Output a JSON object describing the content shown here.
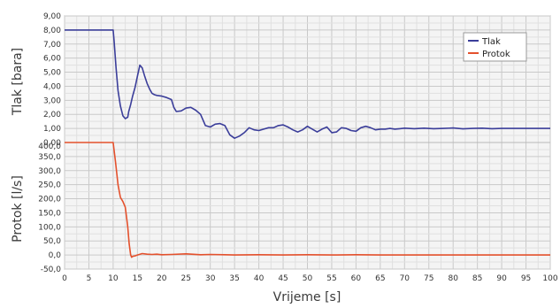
{
  "chart_data": [
    {
      "type": "line",
      "ylabel": "Tlak [bara]",
      "ylim": [
        0,
        9
      ],
      "yticks": [
        "9,00",
        "8,00",
        "7,00",
        "6,00",
        "5,00",
        "4,00",
        "3,00",
        "2,00",
        "1,00",
        "0,00"
      ],
      "legend_placement": "top-right",
      "grid": true,
      "series": [
        {
          "name": "Tlak",
          "color": "#3b3e9a",
          "x": [
            0,
            10,
            10.2,
            10.6,
            11,
            11.5,
            12,
            12.5,
            13,
            13.2,
            13.6,
            14,
            14.5,
            15,
            15.5,
            16,
            16.5,
            17,
            17.5,
            18,
            18.5,
            19,
            20,
            21,
            22,
            22.5,
            23,
            24,
            25,
            26,
            27,
            28,
            29,
            30,
            31,
            32,
            33,
            34,
            35,
            36,
            37,
            38,
            39,
            40,
            41,
            42,
            43,
            44,
            45,
            46,
            47,
            48,
            49,
            50,
            51,
            52,
            53,
            54,
            55,
            56,
            57,
            58,
            59,
            60,
            61,
            62,
            63,
            64,
            65,
            66,
            67,
            68,
            69,
            70,
            72,
            74,
            76,
            78,
            80,
            82,
            84,
            86,
            88,
            90,
            92,
            94,
            96,
            98,
            100
          ],
          "values": [
            8.0,
            8.0,
            7.2,
            5.3,
            3.7,
            2.6,
            1.9,
            1.7,
            1.8,
            2.2,
            2.7,
            3.3,
            3.9,
            4.7,
            5.5,
            5.3,
            4.7,
            4.2,
            3.8,
            3.5,
            3.4,
            3.35,
            3.3,
            3.2,
            3.05,
            2.5,
            2.2,
            2.25,
            2.45,
            2.5,
            2.3,
            2.0,
            1.2,
            1.1,
            1.3,
            1.35,
            1.2,
            0.55,
            0.3,
            0.45,
            0.7,
            1.05,
            0.9,
            0.85,
            0.95,
            1.05,
            1.05,
            1.2,
            1.25,
            1.1,
            0.9,
            0.75,
            0.9,
            1.15,
            0.95,
            0.75,
            0.95,
            1.1,
            0.7,
            0.75,
            1.05,
            1.0,
            0.85,
            0.8,
            1.05,
            1.15,
            1.05,
            0.9,
            0.95,
            0.95,
            1.0,
            0.95,
            0.98,
            1.02,
            0.98,
            1.02,
            0.98,
            1.0,
            1.03,
            0.97,
            1.0,
            1.02,
            0.98,
            1.0,
            1.0,
            1.0,
            1.0,
            1.0,
            1.0
          ]
        }
      ]
    },
    {
      "type": "line",
      "xlabel": "Vrijeme [s]",
      "ylabel": "Protok [l/s]",
      "xlim": [
        0,
        100
      ],
      "ylim": [
        -50,
        400
      ],
      "yticks": [
        "400,0",
        "350,0",
        "300,0",
        "250,0",
        "200,0",
        "150,0",
        "100,0",
        "50,0",
        "0,0",
        "-50,0"
      ],
      "xticks": [
        "0",
        "5",
        "10",
        "15",
        "20",
        "25",
        "30",
        "35",
        "40",
        "45",
        "50",
        "55",
        "60",
        "65",
        "70",
        "75",
        "80",
        "85",
        "90",
        "95",
        "100"
      ],
      "legend_placement": "top-right",
      "grid": true,
      "series": [
        {
          "name": "Protok",
          "color": "#e4512d",
          "x": [
            0,
            10,
            10.5,
            11,
            11.5,
            12,
            12.5,
            13,
            13.3,
            13.6,
            13.8,
            14,
            14.5,
            15,
            16,
            17,
            18,
            19,
            20,
            22,
            25,
            28,
            30,
            33,
            35,
            40,
            45,
            50,
            55,
            60,
            65,
            70,
            75,
            80,
            85,
            90,
            95,
            100
          ],
          "values": [
            400,
            400,
            330,
            250,
            205,
            190,
            170,
            100,
            40,
            0,
            -8,
            -5,
            -3,
            0,
            5,
            3,
            2,
            3,
            1,
            2,
            4,
            1,
            2,
            1,
            0,
            1,
            0,
            1,
            0,
            1,
            0,
            0,
            0,
            0,
            0,
            0,
            0,
            0
          ]
        }
      ]
    }
  ],
  "legend": {
    "items": [
      {
        "label": "Tlak",
        "color": "#3b3e9a"
      },
      {
        "label": "Protok",
        "color": "#e4512d"
      }
    ]
  }
}
